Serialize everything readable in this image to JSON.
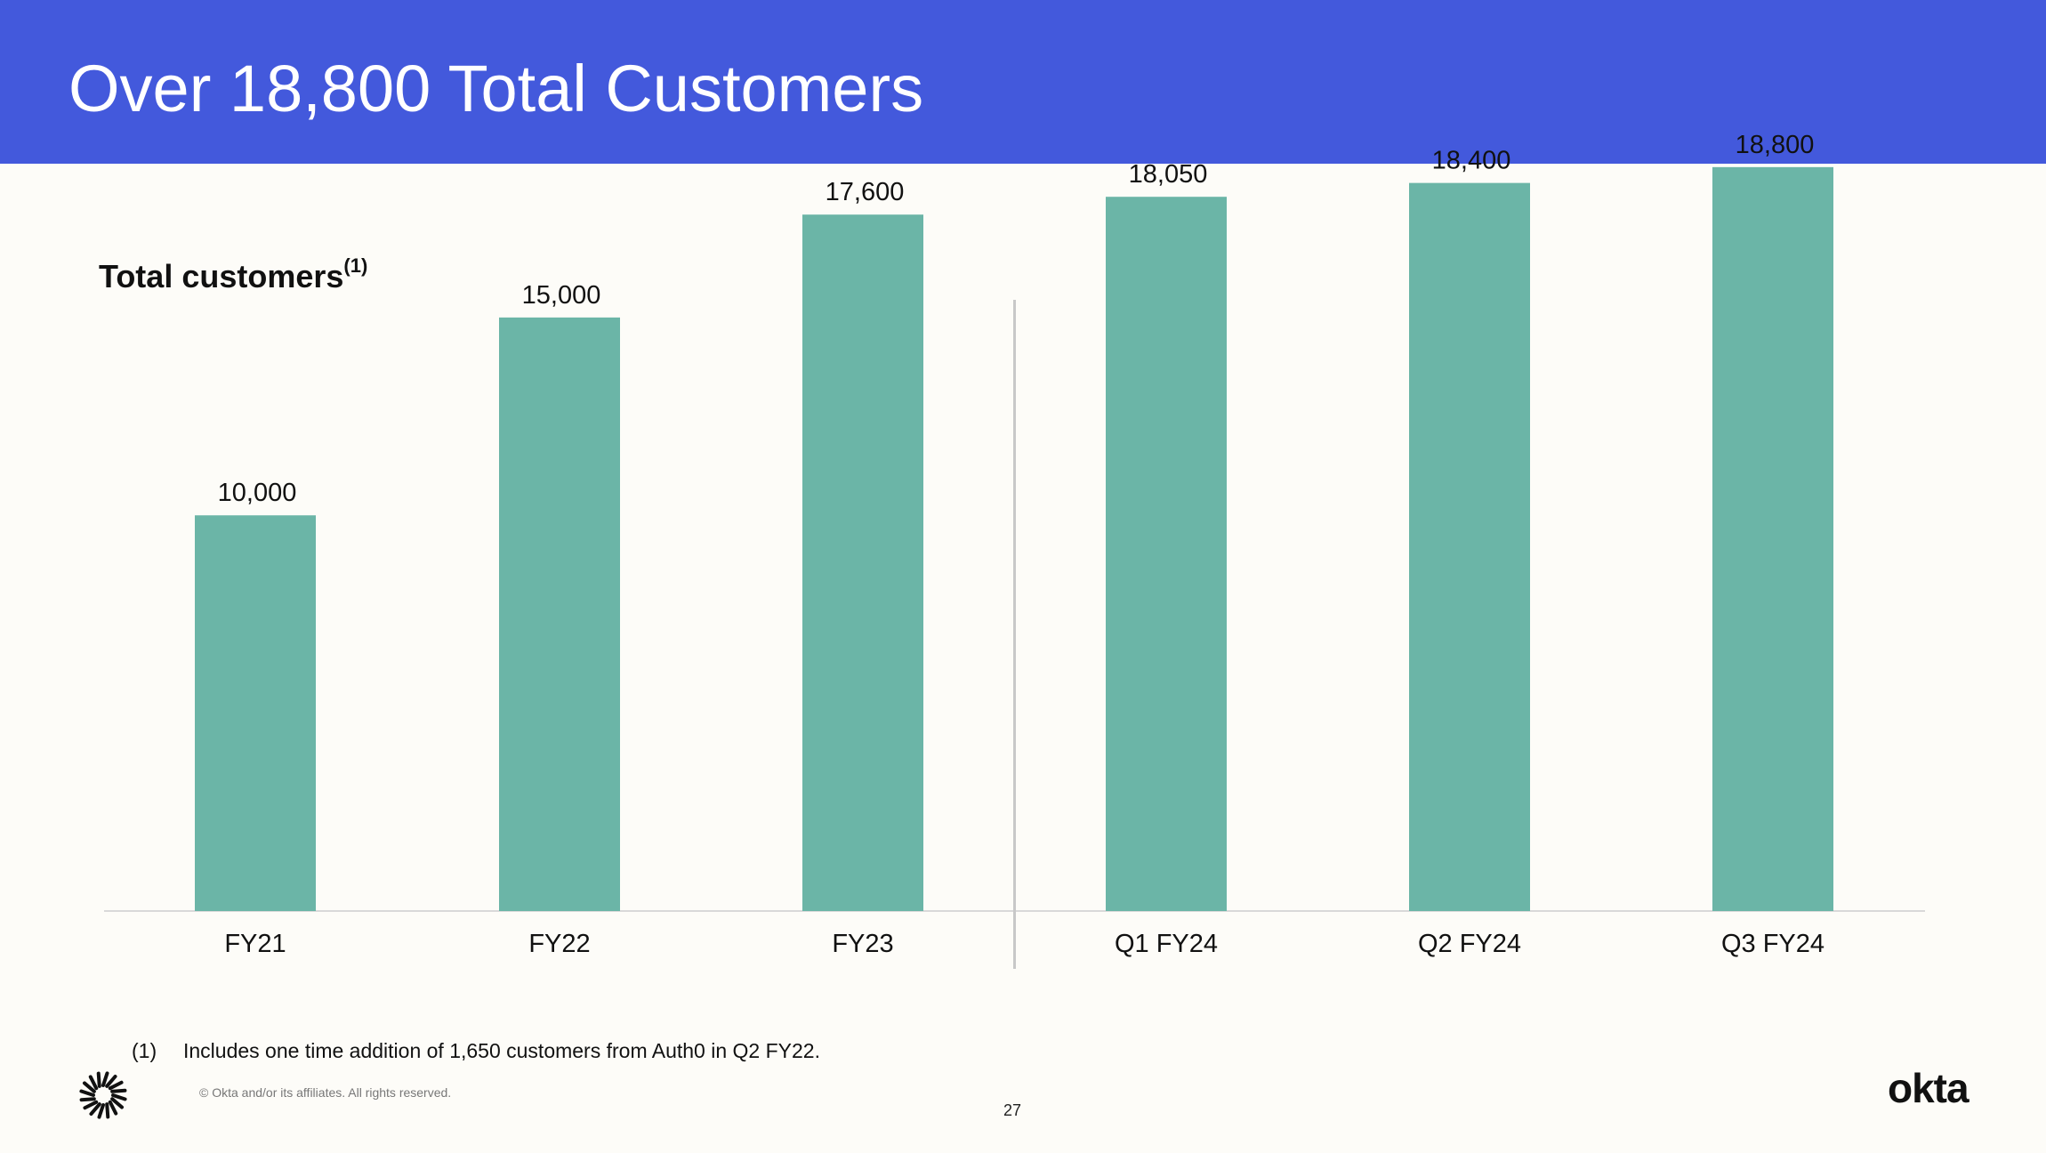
{
  "header": {
    "title": "Over 18,800 Total Customers"
  },
  "colors": {
    "header_bg": "#4359dc",
    "bar": "#6bb5a7",
    "background": "#fdfcf8",
    "divider": "#c8c8c8"
  },
  "chart_data": {
    "type": "bar",
    "title": "Total customers",
    "title_superscript": "(1)",
    "categories": [
      "FY21",
      "FY22",
      "FY23",
      "Q1 FY24",
      "Q2 FY24",
      "Q3 FY24"
    ],
    "values": [
      10000,
      15000,
      17600,
      18050,
      18400,
      18800
    ],
    "value_labels": [
      "10,000",
      "15,000",
      "17,600",
      "18,050",
      "18,400",
      "18,800"
    ],
    "ylim": [
      0,
      21000
    ],
    "grid": false,
    "legend": "none",
    "divider_after_index": 2,
    "xlabel": "",
    "ylabel": ""
  },
  "footnote": {
    "marker": "(1)",
    "text": "Includes one time addition of 1,650 customers from Auth0 in Q2 FY22."
  },
  "footer": {
    "copyright": "© Okta and/or its affiliates. All rights reserved.",
    "page_number": "27",
    "brand": "okta"
  },
  "icons": {
    "brand_mark": "okta-sunburst-icon"
  }
}
